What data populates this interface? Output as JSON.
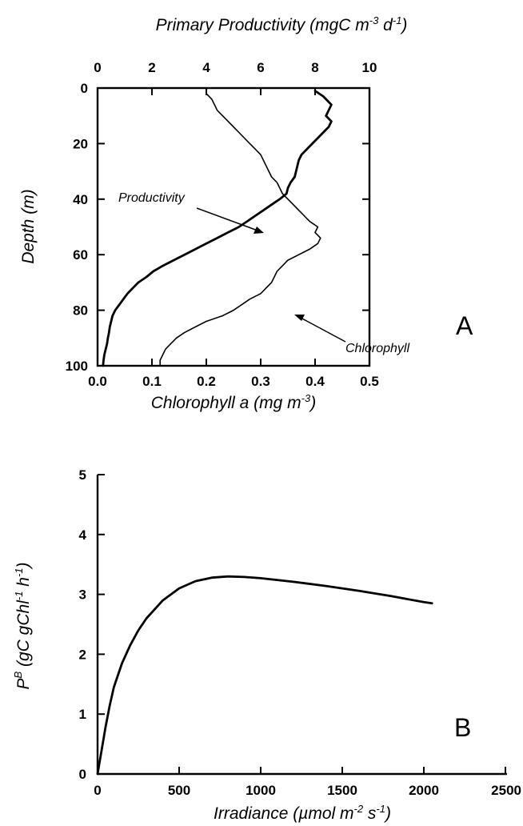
{
  "chart_data": [
    {
      "panel_label": "A",
      "type": "line",
      "top_axis": {
        "label_parts": {
          "main": "Primary Productivity (mgC m",
          "exp1": "-3",
          "mid": " d",
          "exp2": "-1",
          "end": ")"
        },
        "range": [
          0,
          10
        ],
        "ticks": [
          "0",
          "2",
          "4",
          "6",
          "8",
          "10"
        ]
      },
      "bottom_axis": {
        "label_parts": {
          "main": "Chlorophyll a (mg m",
          "exp1": "-3",
          "end": ")"
        },
        "range": [
          0.0,
          0.5
        ],
        "ticks": [
          "0.0",
          "0.1",
          "0.2",
          "0.3",
          "0.4",
          "0.5"
        ]
      },
      "y_axis": {
        "label": "Depth (m)",
        "range": [
          0,
          100
        ],
        "inverted": true,
        "ticks": [
          "0",
          "20",
          "40",
          "60",
          "80",
          "100"
        ]
      },
      "series": [
        {
          "name": "Productivity",
          "axis": "top",
          "points": [
            [
              8.0,
              1
            ],
            [
              8.3,
              3
            ],
            [
              8.6,
              6
            ],
            [
              8.5,
              8
            ],
            [
              8.4,
              10
            ],
            [
              8.6,
              12
            ],
            [
              8.5,
              14
            ],
            [
              8.3,
              16
            ],
            [
              8.1,
              18
            ],
            [
              7.9,
              20
            ],
            [
              7.7,
              22
            ],
            [
              7.5,
              24
            ],
            [
              7.4,
              26
            ],
            [
              7.35,
              28
            ],
            [
              7.3,
              30
            ],
            [
              7.25,
              32
            ],
            [
              7.1,
              34
            ],
            [
              7.0,
              36
            ],
            [
              6.95,
              38
            ],
            [
              6.7,
              40
            ],
            [
              6.4,
              42
            ],
            [
              6.1,
              44
            ],
            [
              5.8,
              46
            ],
            [
              5.5,
              48
            ],
            [
              5.2,
              50
            ],
            [
              4.8,
              52
            ],
            [
              4.4,
              54
            ],
            [
              4.0,
              56
            ],
            [
              3.6,
              58
            ],
            [
              3.2,
              60
            ],
            [
              2.8,
              62
            ],
            [
              2.4,
              64
            ],
            [
              2.05,
              66
            ],
            [
              1.8,
              68
            ],
            [
              1.5,
              70
            ],
            [
              1.3,
              72
            ],
            [
              1.1,
              74
            ],
            [
              0.95,
              76
            ],
            [
              0.8,
              78
            ],
            [
              0.65,
              80
            ],
            [
              0.55,
              82
            ],
            [
              0.5,
              84
            ],
            [
              0.45,
              86
            ],
            [
              0.42,
              88
            ],
            [
              0.38,
              90
            ],
            [
              0.35,
              92
            ],
            [
              0.3,
              94
            ],
            [
              0.25,
              96
            ],
            [
              0.22,
              98
            ],
            [
              0.2,
              100
            ]
          ]
        },
        {
          "name": "Chlorophyll",
          "axis": "bottom",
          "points": [
            [
              0.2,
              0
            ],
            [
              0.2,
              2
            ],
            [
              0.21,
              4
            ],
            [
              0.215,
              6
            ],
            [
              0.22,
              8
            ],
            [
              0.23,
              10
            ],
            [
              0.24,
              12
            ],
            [
              0.25,
              14
            ],
            [
              0.26,
              16
            ],
            [
              0.27,
              18
            ],
            [
              0.28,
              20
            ],
            [
              0.29,
              22
            ],
            [
              0.3,
              24
            ],
            [
              0.305,
              26
            ],
            [
              0.31,
              28
            ],
            [
              0.315,
              30
            ],
            [
              0.32,
              32
            ],
            [
              0.33,
              34
            ],
            [
              0.335,
              36
            ],
            [
              0.34,
              38
            ],
            [
              0.35,
              40
            ],
            [
              0.36,
              42
            ],
            [
              0.37,
              44
            ],
            [
              0.38,
              46
            ],
            [
              0.39,
              48
            ],
            [
              0.405,
              50
            ],
            [
              0.4,
              52
            ],
            [
              0.41,
              54
            ],
            [
              0.405,
              56
            ],
            [
              0.39,
              58
            ],
            [
              0.37,
              60
            ],
            [
              0.35,
              62
            ],
            [
              0.34,
              64
            ],
            [
              0.33,
              66
            ],
            [
              0.325,
              68
            ],
            [
              0.32,
              70
            ],
            [
              0.31,
              72
            ],
            [
              0.3,
              74
            ],
            [
              0.28,
              76
            ],
            [
              0.265,
              78
            ],
            [
              0.25,
              80
            ],
            [
              0.23,
              82
            ],
            [
              0.2,
              84
            ],
            [
              0.18,
              86
            ],
            [
              0.16,
              88
            ],
            [
              0.145,
              90
            ],
            [
              0.135,
              92
            ],
            [
              0.125,
              94
            ],
            [
              0.12,
              96
            ],
            [
              0.115,
              98
            ],
            [
              0.115,
              100
            ]
          ]
        }
      ],
      "annotations": [
        {
          "text": "Productivity",
          "target_series": "Productivity"
        },
        {
          "text": "Chlorophyll",
          "target_series": "Chlorophyll"
        }
      ]
    },
    {
      "panel_label": "B",
      "type": "line",
      "x_axis": {
        "label_parts": {
          "main": "Irradiance (µmol m",
          "exp1": "-2",
          "mid": " s",
          "exp2": "-1",
          "end": ")"
        },
        "range": [
          0,
          2500
        ],
        "ticks": [
          "0",
          "500",
          "1000",
          "1500",
          "2000",
          "2500"
        ]
      },
      "y_axis": {
        "label_parts": {
          "p": "P",
          "psup": "B",
          "main": " (gC  gChl",
          "exp1": "-1",
          "mid": " h",
          "exp2": "-1",
          "end": ")"
        },
        "range": [
          0,
          5
        ],
        "ticks": [
          "0",
          "1",
          "2",
          "3",
          "4",
          "5"
        ]
      },
      "series": [
        {
          "name": "",
          "points": [
            [
              0,
              0
            ],
            [
              25,
              0.4
            ],
            [
              50,
              0.8
            ],
            [
              75,
              1.15
            ],
            [
              100,
              1.45
            ],
            [
              150,
              1.85
            ],
            [
              200,
              2.15
            ],
            [
              250,
              2.4
            ],
            [
              300,
              2.6
            ],
            [
              400,
              2.9
            ],
            [
              500,
              3.1
            ],
            [
              600,
              3.22
            ],
            [
              700,
              3.28
            ],
            [
              800,
              3.3
            ],
            [
              900,
              3.29
            ],
            [
              1000,
              3.27
            ],
            [
              1200,
              3.21
            ],
            [
              1400,
              3.14
            ],
            [
              1600,
              3.06
            ],
            [
              1800,
              2.97
            ],
            [
              2000,
              2.87
            ],
            [
              2050,
              2.85
            ]
          ]
        }
      ]
    }
  ]
}
